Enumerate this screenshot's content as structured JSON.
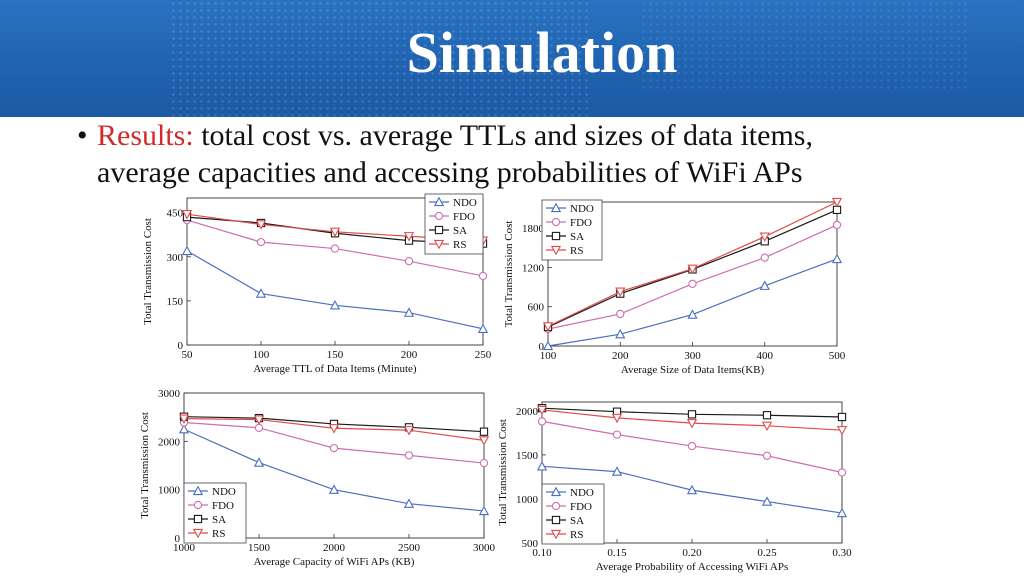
{
  "slide": {
    "title": "Simulation",
    "bullet_lead": "Results:",
    "bullet_line1": " total cost  vs. average TTLs and sizes of data items,",
    "bullet_line2": "average capacities and accessing probabilities of WiFi APs"
  },
  "colors": {
    "banner": "#2367b5",
    "accent_red": "#d3292b",
    "NDO": "#4a6fbf",
    "FDO": "#cc6fb0",
    "SA": "#1a1a1a",
    "RS": "#e04b4b"
  },
  "markers": {
    "NDO": "triangle-up",
    "FDO": "circle",
    "SA": "square",
    "RS": "triangle-down"
  },
  "chart_data": [
    {
      "type": "line",
      "xlabel": "Average TTL of Data Items (Minute)",
      "ylabel": "Total Transmission Cost",
      "x": [
        50,
        100,
        150,
        200,
        250
      ],
      "xticks": [
        "50",
        "100",
        "150",
        "200",
        "250"
      ],
      "yticks": [
        "0",
        "150",
        "300",
        "450"
      ],
      "xlim": [
        50,
        250
      ],
      "ylim": [
        0,
        500
      ],
      "legend_position": "top-right",
      "series": [
        {
          "name": "NDO",
          "values": [
            320,
            175,
            135,
            110,
            55
          ]
        },
        {
          "name": "FDO",
          "values": [
            425,
            350,
            328,
            285,
            235
          ]
        },
        {
          "name": "SA",
          "values": [
            435,
            415,
            380,
            355,
            345
          ]
        },
        {
          "name": "RS",
          "values": [
            445,
            410,
            385,
            370,
            355
          ]
        }
      ]
    },
    {
      "type": "line",
      "xlabel": "Average Size of Data Items(KB)",
      "ylabel": "Total Transmission Cost",
      "x": [
        100,
        200,
        300,
        400,
        500
      ],
      "xticks": [
        "100",
        "200",
        "300",
        "400",
        "500"
      ],
      "yticks": [
        "0",
        "600",
        "1200",
        "1800"
      ],
      "xlim": [
        100,
        500
      ],
      "ylim": [
        0,
        2200
      ],
      "legend_position": "top-left",
      "series": [
        {
          "name": "NDO",
          "values": [
            0,
            180,
            480,
            920,
            1330
          ]
        },
        {
          "name": "FDO",
          "values": [
            260,
            490,
            950,
            1350,
            1850
          ]
        },
        {
          "name": "SA",
          "values": [
            290,
            800,
            1170,
            1600,
            2080
          ]
        },
        {
          "name": "RS",
          "values": [
            300,
            830,
            1180,
            1670,
            2200
          ]
        }
      ]
    },
    {
      "type": "line",
      "xlabel": "Average Capacity of WiFi APs (KB)",
      "ylabel": "Total Transmission Cost",
      "x": [
        1000,
        1500,
        2000,
        2500,
        3000
      ],
      "xticks": [
        "1000",
        "1500",
        "2000",
        "2500",
        "3000"
      ],
      "yticks": [
        "0",
        "1000",
        "2000",
        "3000"
      ],
      "xlim": [
        1000,
        3000
      ],
      "ylim": [
        0,
        3000
      ],
      "legend_position": "bottom-left",
      "series": [
        {
          "name": "NDO",
          "values": [
            2250,
            1560,
            1000,
            710,
            560
          ]
        },
        {
          "name": "FDO",
          "values": [
            2390,
            2280,
            1860,
            1710,
            1550
          ]
        },
        {
          "name": "SA",
          "values": [
            2510,
            2480,
            2360,
            2290,
            2200
          ]
        },
        {
          "name": "RS",
          "values": [
            2470,
            2450,
            2270,
            2230,
            2020
          ]
        }
      ]
    },
    {
      "type": "line",
      "xlabel": "Average Probability of Accessing WiFi APs",
      "ylabel": "Total Transmission Cost",
      "x": [
        0.1,
        0.15,
        0.2,
        0.25,
        0.3
      ],
      "xticks": [
        "0.10",
        "0.15",
        "0.20",
        "0.25",
        "0.30"
      ],
      "yticks": [
        "500",
        "1000",
        "1500",
        "2000"
      ],
      "xlim": [
        0.1,
        0.3
      ],
      "ylim": [
        500,
        2100
      ],
      "legend_position": "bottom-left",
      "series": [
        {
          "name": "NDO",
          "values": [
            1370,
            1310,
            1100,
            970,
            840
          ]
        },
        {
          "name": "FDO",
          "values": [
            1880,
            1730,
            1600,
            1490,
            1300
          ]
        },
        {
          "name": "SA",
          "values": [
            2030,
            1990,
            1960,
            1950,
            1930
          ]
        },
        {
          "name": "RS",
          "values": [
            2010,
            1920,
            1860,
            1830,
            1780
          ]
        }
      ]
    }
  ]
}
